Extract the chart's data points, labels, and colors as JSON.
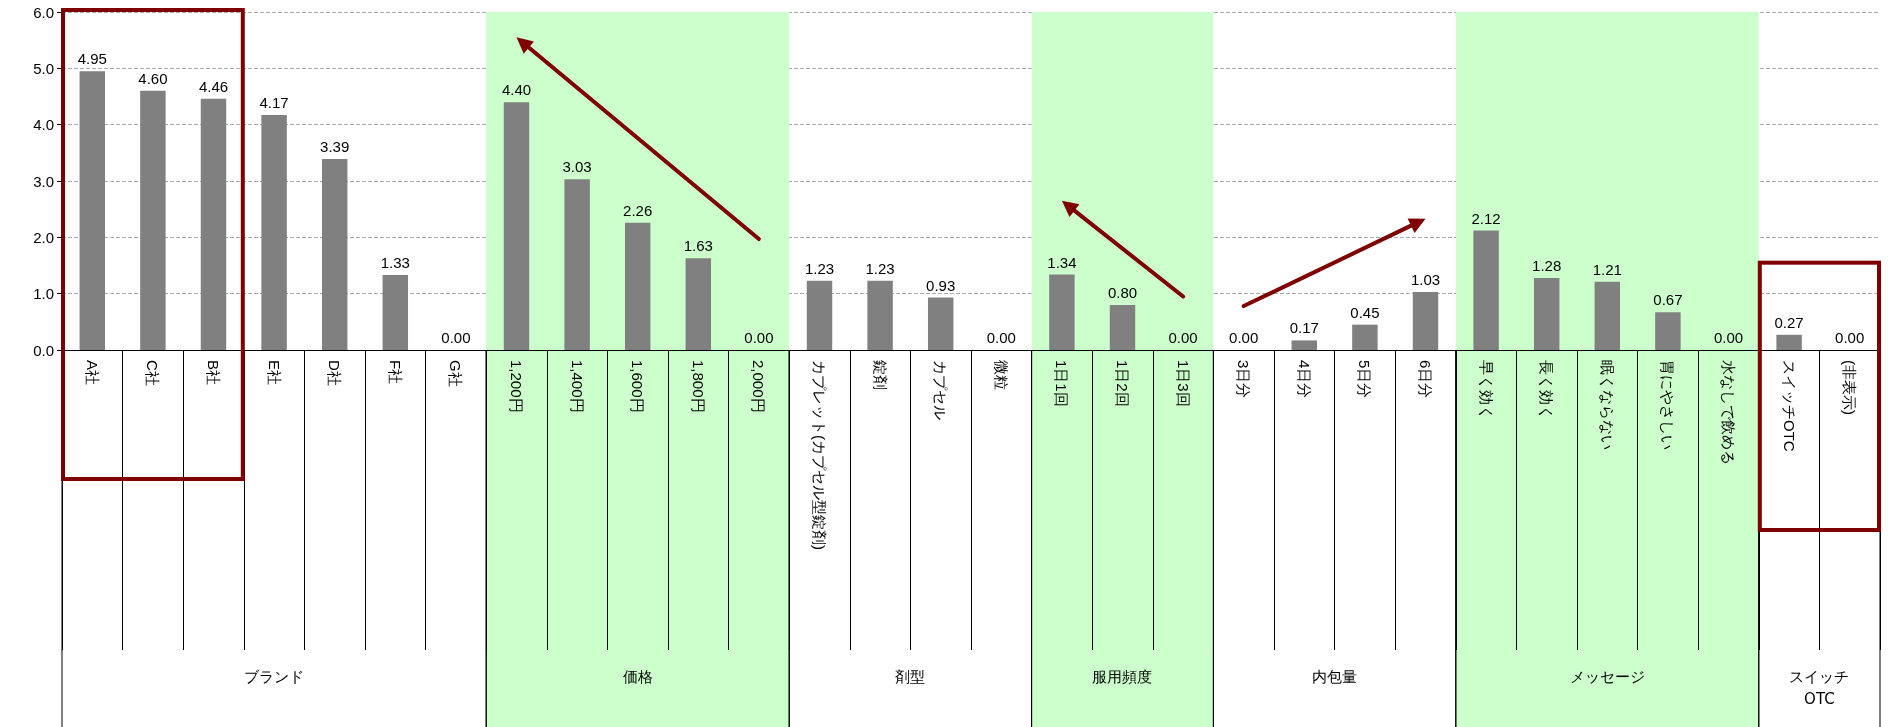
{
  "chart_data": {
    "type": "bar",
    "categories": [
      "A社",
      "C社",
      "B社",
      "E社",
      "D社",
      "F社",
      "G社",
      "1,200円",
      "1,400円",
      "1,600円",
      "1,800円",
      "2,000円",
      "カプレット(カプセル型錠剤)",
      "錠剤",
      "カプセル",
      "微粒",
      "1日1回",
      "1日2回",
      "1日3回",
      "3日分",
      "4日分",
      "5日分",
      "6日分",
      "早く効く",
      "長く効く",
      "眠くならない",
      "胃にやさしい",
      "水なしで飲める",
      "スイッチOTC",
      "(非表示)"
    ],
    "values": [
      4.95,
      4.6,
      4.46,
      4.17,
      3.39,
      1.33,
      0.0,
      4.4,
      3.03,
      2.26,
      1.63,
      0.0,
      1.23,
      1.23,
      0.93,
      0.0,
      1.34,
      0.8,
      0.0,
      0.0,
      0.17,
      0.45,
      1.03,
      2.12,
      1.28,
      1.21,
      0.67,
      0.0,
      0.27,
      0.0
    ],
    "value_labels": [
      "4.95",
      "4.60",
      "4.46",
      "4.17",
      "3.39",
      "1.33",
      "0.00",
      "4.40",
      "3.03",
      "2.26",
      "1.63",
      "0.00",
      "1.23",
      "1.23",
      "0.93",
      "0.00",
      "1.34",
      "0.80",
      "0.00",
      "0.00",
      "0.17",
      "0.45",
      "1.03",
      "2.12",
      "1.28",
      "1.21",
      "0.67",
      "0.00",
      "0.27",
      "0.00"
    ],
    "color": "#808080",
    "ylim": [
      0,
      6
    ],
    "yticks": [
      {
        "value": 0,
        "label": "0.0"
      },
      {
        "value": 1,
        "label": "1.0"
      },
      {
        "value": 2,
        "label": "2.0"
      },
      {
        "value": 3,
        "label": "3.0"
      },
      {
        "value": 4,
        "label": "4.0"
      },
      {
        "value": 5,
        "label": "5.0"
      },
      {
        "value": 6,
        "label": "6.0"
      }
    ],
    "grid": "y",
    "bands": [
      {
        "axis": "x",
        "from": "1,200円",
        "to": "2,000円",
        "color": "#ccffcc"
      },
      {
        "axis": "x",
        "from": "1日1回",
        "to": "1日3回",
        "color": "#ccffcc"
      },
      {
        "axis": "x",
        "from": "早く効く",
        "to": "水なしで飲める",
        "color": "#ccffcc"
      }
    ],
    "annotations": [
      "ブランド",
      "価格",
      "剤型",
      "服用頻度",
      "内包量",
      "メッセージ",
      "スイッチOTC"
    ]
  }
}
